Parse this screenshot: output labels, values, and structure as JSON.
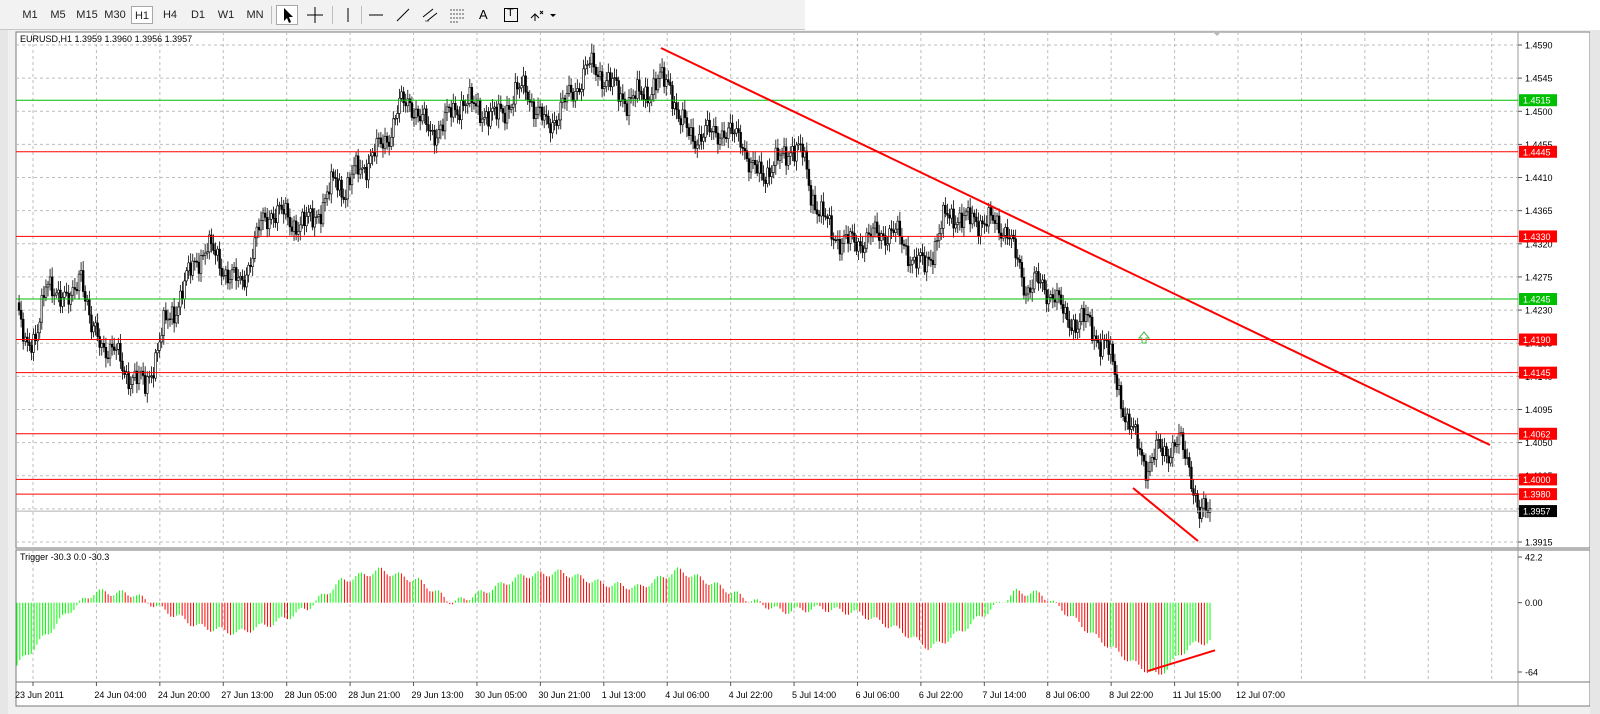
{
  "toolbar": {
    "timeframes": [
      "M1",
      "M5",
      "M15",
      "M30",
      "H1",
      "H4",
      "D1",
      "W1",
      "MN"
    ],
    "active_timeframe": "H1",
    "tools": [
      "cursor-tool",
      "crosshair-tool",
      "vertical-line-tool",
      "horizontal-line-tool",
      "trendline-tool",
      "equidistant-channel-tool",
      "fibonacci-tool",
      "text-tool",
      "text-label-tool",
      "arrows-dropdown-tool"
    ],
    "text_tool_label": "A",
    "text_label_tool_label": "T"
  },
  "chart": {
    "symbol_info": "EURUSD,H1  1.3959 1.3960 1.3956 1.3957",
    "current_price": "1.3957",
    "price_ticks": [
      "1.4590",
      "1.4545",
      "1.4500",
      "1.4455",
      "1.4410",
      "1.4365",
      "1.4320",
      "1.4275",
      "1.4230",
      "1.4185",
      "1.4140",
      "1.4095",
      "1.4050",
      "1.4005",
      "1.3960",
      "1.3915"
    ],
    "time_ticks": [
      "23 Jun 2011",
      "24 Jun 04:00",
      "24 Jun 20:00",
      "27 Jun 13:00",
      "28 Jun 05:00",
      "28 Jun 21:00",
      "29 Jun 13:00",
      "30 Jun 05:00",
      "30 Jun 21:00",
      "1 Jul 13:00",
      "4 Jul 06:00",
      "4 Jul 22:00",
      "5 Jul 14:00",
      "6 Jul 06:00",
      "6 Jul 22:00",
      "7 Jul 14:00",
      "8 Jul 06:00",
      "8 Jul 22:00",
      "11 Jul 15:00",
      "12 Jul 07:00"
    ],
    "horizontal_levels": [
      {
        "price": "1.4515",
        "color": "#00bf00"
      },
      {
        "price": "1.4445",
        "color": "#ff0000"
      },
      {
        "price": "1.4330",
        "color": "#ff0000"
      },
      {
        "price": "1.4245",
        "color": "#00bf00"
      },
      {
        "price": "1.4190",
        "color": "#ff0000"
      },
      {
        "price": "1.4145",
        "color": "#ff0000"
      },
      {
        "price": "1.4062",
        "color": "#ff0000"
      },
      {
        "price": "1.4000",
        "color": "#ff0000"
      },
      {
        "price": "1.3980",
        "color": "#ff0000"
      }
    ],
    "bull_color": "#00c000",
    "bear_color": "#000000",
    "arrow_icon": "up-arrow-icon"
  },
  "indicator": {
    "label": "Trigger -30.3 0.0 -30.3",
    "scale_ticks": [
      "42.2",
      "0.00",
      "-64"
    ],
    "positive_color": "#00ff00",
    "negative_color": "#ff0000"
  }
}
